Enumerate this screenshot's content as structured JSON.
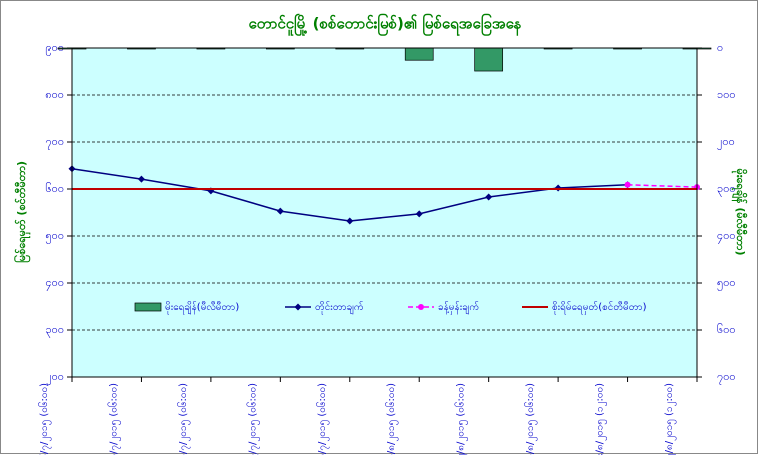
{
  "chart_data": {
    "type": "line",
    "title": "တောင်ငူမြို့ (စစ်တောင်းမြစ်)၏ မြစ်ရေအခြေအနေ",
    "y_label": "မြစ်ရေမှတ် (စင်တီမီတာ)",
    "y2_label": "မိုးရေချိန် (မီလီမီတာ)",
    "categories": [
      "၂၆/၇/၂၀၁၅ (၀၆:၀၀)",
      "၂၇/၇/၂၀၁၅ (၀၆:၀၀)",
      "၂၈/၇/၂၀၁၅ (၀၆:၀၀)",
      "၂၉/၇/၂၀၁၅ (၀၆:၀၀)",
      "၃၀/၇/၂၀၁၅ (၀၆:၀၀)",
      "၁/၈/၂၀၁၅ (၀၆:၀၀)",
      "၂/၈/၂၀၁၅ (၀၆:၀၀)",
      "၃/၈/၂၀၁၅ (၀၆:၀၀)",
      "၄/၈/၂၀၁၅ (၁၂:၀၀)",
      "၅/၈/၂၀၁၅ (၁၂:၀၀)"
    ],
    "ylim": [
      200,
      900
    ],
    "yticks": [
      {
        "value": 900,
        "label": "၉၀၀"
      },
      {
        "value": 800,
        "label": "၈၀၀"
      },
      {
        "value": 700,
        "label": "၇၀၀"
      },
      {
        "value": 600,
        "label": "၆၀၀"
      },
      {
        "value": 500,
        "label": "၅၀၀"
      },
      {
        "value": 400,
        "label": "၄၀၀"
      },
      {
        "value": 300,
        "label": "၃၀၀"
      },
      {
        "value": 200,
        "label": "၂၀၀"
      }
    ],
    "y2lim": [
      0,
      700
    ],
    "y2_reversed": true,
    "y2ticks": [
      {
        "value": 0,
        "label": "၀"
      },
      {
        "value": 100,
        "label": "၁၀၀"
      },
      {
        "value": 200,
        "label": "၂၀၀"
      },
      {
        "value": 300,
        "label": "၃၀၀"
      },
      {
        "value": 400,
        "label": "၄၀၀"
      },
      {
        "value": 500,
        "label": "၅၀၀"
      },
      {
        "value": 600,
        "label": "၆၀၀"
      },
      {
        "value": 700,
        "label": "၇၀၀"
      }
    ],
    "grid": true,
    "series": [
      {
        "name": "မိုးရေချိန်(မီလီမီတာ)",
        "kind": "bar",
        "axis": "y2",
        "color": "#339966",
        "values": [
          0,
          0,
          1,
          0,
          1,
          26,
          49,
          1,
          1,
          0
        ]
      },
      {
        "name": "တိုင်းတာချက်",
        "kind": "line",
        "color": "#000080",
        "values": [
          643,
          621,
          596,
          553,
          532,
          547,
          583,
          602,
          609,
          null
        ]
      },
      {
        "name": "ခန့်မှန်းချက်",
        "kind": "dashed",
        "color": "#ff00ff",
        "values": [
          null,
          null,
          null,
          null,
          null,
          null,
          null,
          null,
          609,
          604
        ]
      },
      {
        "name": "စိုးရိမ်ရေမှတ်(စင်တီမီတာ)",
        "kind": "level",
        "color": "#c00000",
        "value": 600
      }
    ]
  }
}
